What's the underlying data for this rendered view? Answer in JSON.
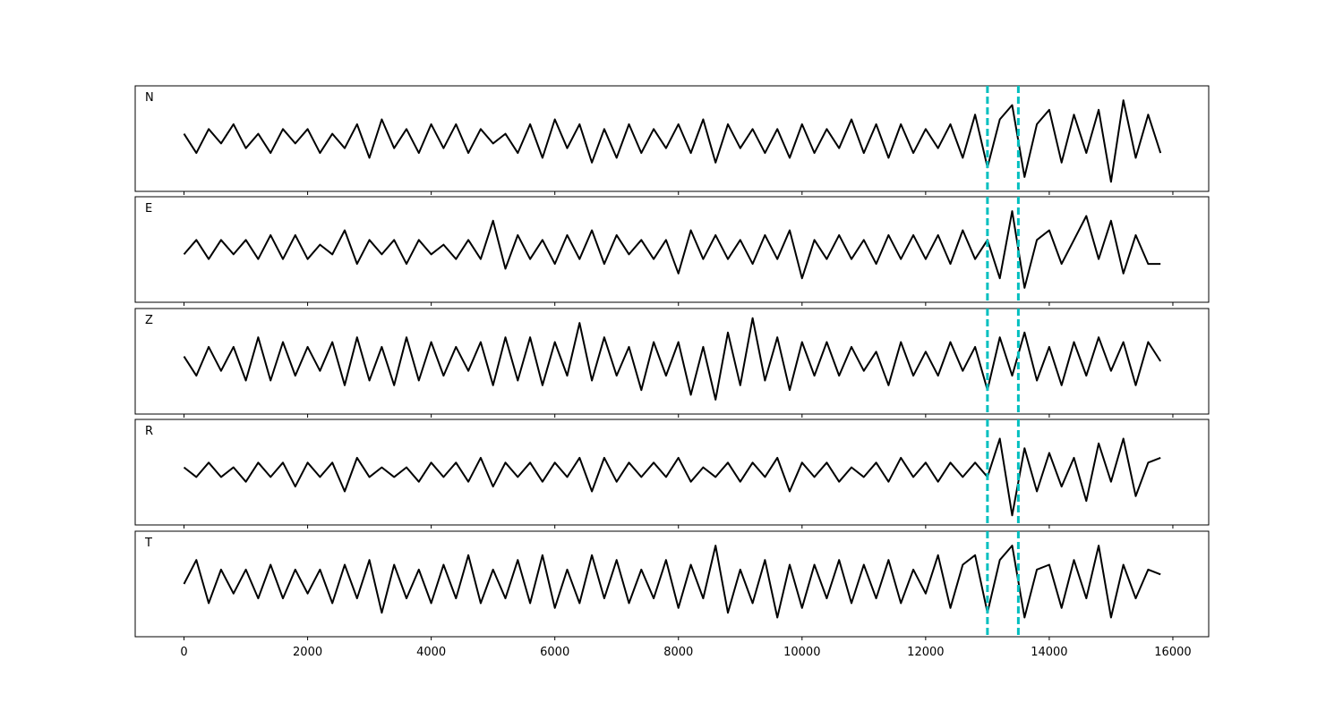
{
  "chart_data": [
    {
      "type": "line",
      "title": "N",
      "color": "#000000",
      "vlines": [
        13000,
        13500
      ],
      "vline_color": "#00bfbf",
      "xlim": [
        -790,
        16580
      ],
      "ylim": [
        -1.1,
        1.1
      ],
      "xticks": [
        0,
        2000,
        4000,
        6000,
        8000,
        10000,
        12000,
        14000,
        16000
      ],
      "x": [
        0,
        200,
        400,
        600,
        800,
        1000,
        1200,
        1400,
        1600,
        1800,
        2000,
        2200,
        2400,
        2600,
        2800,
        3000,
        3200,
        3400,
        3600,
        3800,
        4000,
        4200,
        4400,
        4600,
        4800,
        5000,
        5200,
        5400,
        5600,
        5800,
        6000,
        6200,
        6400,
        6600,
        6800,
        7000,
        7200,
        7400,
        7600,
        7800,
        8000,
        8200,
        8400,
        8600,
        8800,
        9000,
        9200,
        9400,
        9600,
        9800,
        10000,
        10200,
        10400,
        10600,
        10800,
        11000,
        11200,
        11400,
        11600,
        11800,
        12000,
        12200,
        12400,
        12600,
        12800,
        13000,
        13200,
        13400,
        13600,
        13800,
        14000,
        14200,
        14400,
        14600,
        14800,
        15000,
        15200,
        15400,
        15600,
        15800
      ],
      "values": [
        0.1,
        -0.3,
        0.2,
        -0.1,
        0.3,
        -0.2,
        0.1,
        -0.3,
        0.2,
        -0.1,
        0.2,
        -0.3,
        0.1,
        -0.2,
        0.3,
        -0.4,
        0.4,
        -0.2,
        0.2,
        -0.3,
        0.3,
        -0.2,
        0.3,
        -0.3,
        0.2,
        -0.1,
        0.1,
        -0.3,
        0.3,
        -0.4,
        0.4,
        -0.2,
        0.3,
        -0.5,
        0.2,
        -0.4,
        0.3,
        -0.3,
        0.2,
        -0.2,
        0.3,
        -0.3,
        0.4,
        -0.5,
        0.3,
        -0.2,
        0.2,
        -0.3,
        0.2,
        -0.4,
        0.3,
        -0.3,
        0.2,
        -0.2,
        0.4,
        -0.3,
        0.3,
        -0.4,
        0.3,
        -0.3,
        0.2,
        -0.2,
        0.3,
        -0.4,
        0.5,
        -0.6,
        0.4,
        0.7,
        -0.8,
        0.3,
        0.6,
        -0.5,
        0.5,
        -0.3,
        0.6,
        -0.9,
        0.8,
        -0.4,
        0.5,
        -0.3
      ]
    },
    {
      "type": "line",
      "title": "E",
      "color": "#000000",
      "vlines": [
        13000,
        13500
      ],
      "vline_color": "#00bfbf",
      "xlim": [
        -790,
        16580
      ],
      "ylim": [
        -1.1,
        1.1
      ],
      "xticks": [
        0,
        2000,
        4000,
        6000,
        8000,
        10000,
        12000,
        14000,
        16000
      ],
      "x": [
        0,
        200,
        400,
        600,
        800,
        1000,
        1200,
        1400,
        1600,
        1800,
        2000,
        2200,
        2400,
        2600,
        2800,
        3000,
        3200,
        3400,
        3600,
        3800,
        4000,
        4200,
        4400,
        4600,
        4800,
        5000,
        5200,
        5400,
        5600,
        5800,
        6000,
        6200,
        6400,
        6600,
        6800,
        7000,
        7200,
        7400,
        7600,
        7800,
        8000,
        8200,
        8400,
        8600,
        8800,
        9000,
        9200,
        9400,
        9600,
        9800,
        10000,
        10200,
        10400,
        10600,
        10800,
        11000,
        11200,
        11400,
        11600,
        11800,
        12000,
        12200,
        12400,
        12600,
        12800,
        13000,
        13200,
        13400,
        13600,
        13800,
        14000,
        14200,
        14400,
        14600,
        14800,
        15000,
        15200,
        15400,
        15600,
        15800
      ],
      "values": [
        -0.1,
        0.2,
        -0.2,
        0.2,
        -0.1,
        0.2,
        -0.2,
        0.3,
        -0.2,
        0.3,
        -0.2,
        0.1,
        -0.1,
        0.4,
        -0.3,
        0.2,
        -0.1,
        0.2,
        -0.3,
        0.2,
        -0.1,
        0.1,
        -0.2,
        0.2,
        -0.2,
        0.6,
        -0.4,
        0.3,
        -0.2,
        0.2,
        -0.3,
        0.3,
        -0.2,
        0.4,
        -0.3,
        0.3,
        -0.1,
        0.2,
        -0.2,
        0.2,
        -0.5,
        0.4,
        -0.2,
        0.3,
        -0.2,
        0.2,
        -0.3,
        0.3,
        -0.2,
        0.4,
        -0.6,
        0.2,
        -0.2,
        0.3,
        -0.2,
        0.2,
        -0.3,
        0.3,
        -0.2,
        0.3,
        -0.2,
        0.3,
        -0.3,
        0.4,
        -0.2,
        0.2,
        -0.6,
        0.8,
        -0.8,
        0.2,
        0.4,
        -0.3,
        0.2,
        0.7,
        -0.2,
        0.6,
        -0.5,
        0.3,
        -0.3,
        -0.3
      ]
    },
    {
      "type": "line",
      "title": "Z",
      "color": "#000000",
      "vlines": [
        13000,
        13500
      ],
      "vline_color": "#00bfbf",
      "xlim": [
        -790,
        16580
      ],
      "ylim": [
        -1.1,
        1.1
      ],
      "xticks": [
        0,
        2000,
        4000,
        6000,
        8000,
        10000,
        12000,
        14000,
        16000
      ],
      "x": [
        0,
        200,
        400,
        600,
        800,
        1000,
        1200,
        1400,
        1600,
        1800,
        2000,
        2200,
        2400,
        2600,
        2800,
        3000,
        3200,
        3400,
        3600,
        3800,
        4000,
        4200,
        4400,
        4600,
        4800,
        5000,
        5200,
        5400,
        5600,
        5800,
        6000,
        6200,
        6400,
        6600,
        6800,
        7000,
        7200,
        7400,
        7600,
        7800,
        8000,
        8200,
        8400,
        8600,
        8800,
        9000,
        9200,
        9400,
        9600,
        9800,
        10000,
        10200,
        10400,
        10600,
        10800,
        11000,
        11200,
        11400,
        11600,
        11800,
        12000,
        12200,
        12400,
        12600,
        12800,
        13000,
        13200,
        13400,
        13600,
        13800,
        14000,
        14200,
        14400,
        14600,
        14800,
        15000,
        15200,
        15400,
        15600,
        15800
      ],
      "values": [
        0.1,
        -0.3,
        0.3,
        -0.2,
        0.3,
        -0.4,
        0.5,
        -0.4,
        0.4,
        -0.3,
        0.3,
        -0.2,
        0.4,
        -0.5,
        0.5,
        -0.4,
        0.3,
        -0.5,
        0.5,
        -0.4,
        0.4,
        -0.3,
        0.3,
        -0.2,
        0.4,
        -0.5,
        0.5,
        -0.4,
        0.5,
        -0.5,
        0.4,
        -0.3,
        0.8,
        -0.4,
        0.5,
        -0.3,
        0.3,
        -0.6,
        0.4,
        -0.3,
        0.4,
        -0.7,
        0.3,
        -0.8,
        0.6,
        -0.5,
        0.9,
        -0.4,
        0.5,
        -0.6,
        0.4,
        -0.3,
        0.4,
        -0.3,
        0.3,
        -0.2,
        0.2,
        -0.5,
        0.4,
        -0.3,
        0.2,
        -0.3,
        0.4,
        -0.2,
        0.3,
        -0.6,
        0.5,
        -0.3,
        0.6,
        -0.4,
        0.3,
        -0.5,
        0.4,
        -0.3,
        0.5,
        -0.2,
        0.4,
        -0.5,
        0.4,
        0.0
      ]
    },
    {
      "type": "line",
      "title": "R",
      "color": "#000000",
      "vlines": [
        13000,
        13500
      ],
      "vline_color": "#00bfbf",
      "xlim": [
        -790,
        16580
      ],
      "ylim": [
        -1.1,
        1.1
      ],
      "xticks": [
        0,
        2000,
        4000,
        6000,
        8000,
        10000,
        12000,
        14000,
        16000
      ],
      "x": [
        0,
        200,
        400,
        600,
        800,
        1000,
        1200,
        1400,
        1600,
        1800,
        2000,
        2200,
        2400,
        2600,
        2800,
        3000,
        3200,
        3400,
        3600,
        3800,
        4000,
        4200,
        4400,
        4600,
        4800,
        5000,
        5200,
        5400,
        5600,
        5800,
        6000,
        6200,
        6400,
        6600,
        6800,
        7000,
        7200,
        7400,
        7600,
        7800,
        8000,
        8200,
        8400,
        8600,
        8800,
        9000,
        9200,
        9400,
        9600,
        9800,
        10000,
        10200,
        10400,
        10600,
        10800,
        11000,
        11200,
        11400,
        11600,
        11800,
        12000,
        12200,
        12400,
        12600,
        12800,
        13000,
        13200,
        13400,
        13600,
        13800,
        14000,
        14200,
        14400,
        14600,
        14800,
        15000,
        15200,
        15400,
        15600,
        15800
      ],
      "values": [
        0.1,
        -0.1,
        0.2,
        -0.1,
        0.1,
        -0.2,
        0.2,
        -0.1,
        0.2,
        -0.3,
        0.2,
        -0.1,
        0.2,
        -0.4,
        0.3,
        -0.1,
        0.1,
        -0.1,
        0.1,
        -0.2,
        0.2,
        -0.1,
        0.2,
        -0.2,
        0.3,
        -0.3,
        0.2,
        -0.1,
        0.2,
        -0.2,
        0.2,
        -0.1,
        0.3,
        -0.4,
        0.3,
        -0.2,
        0.2,
        -0.1,
        0.2,
        -0.1,
        0.3,
        -0.2,
        0.1,
        -0.1,
        0.2,
        -0.2,
        0.2,
        -0.1,
        0.3,
        -0.4,
        0.2,
        -0.1,
        0.2,
        -0.2,
        0.1,
        -0.1,
        0.2,
        -0.2,
        0.3,
        -0.1,
        0.2,
        -0.2,
        0.2,
        -0.1,
        0.2,
        -0.1,
        0.7,
        -0.9,
        0.5,
        -0.4,
        0.4,
        -0.3,
        0.3,
        -0.6,
        0.6,
        -0.2,
        0.7,
        -0.5,
        0.2,
        0.3
      ]
    },
    {
      "type": "line",
      "title": "T",
      "color": "#000000",
      "vlines": [
        13000,
        13500
      ],
      "vline_color": "#00bfbf",
      "xlim": [
        -790,
        16580
      ],
      "ylim": [
        -1.1,
        1.1
      ],
      "xticks": [
        0,
        2000,
        4000,
        6000,
        8000,
        10000,
        12000,
        14000,
        16000
      ],
      "x": [
        0,
        200,
        400,
        600,
        800,
        1000,
        1200,
        1400,
        1600,
        1800,
        2000,
        2200,
        2400,
        2600,
        2800,
        3000,
        3200,
        3400,
        3600,
        3800,
        4000,
        4200,
        4400,
        4600,
        4800,
        5000,
        5200,
        5400,
        5600,
        5800,
        6000,
        6200,
        6400,
        6600,
        6800,
        7000,
        7200,
        7400,
        7600,
        7800,
        8000,
        8200,
        8400,
        8600,
        8800,
        9000,
        9200,
        9400,
        9600,
        9800,
        10000,
        10200,
        10400,
        10600,
        10800,
        11000,
        11200,
        11400,
        11600,
        11800,
        12000,
        12200,
        12400,
        12600,
        12800,
        13000,
        13200,
        13400,
        13600,
        13800,
        14000,
        14200,
        14400,
        14600,
        14800,
        15000,
        15200,
        15400,
        15600,
        15800
      ],
      "values": [
        0.0,
        0.5,
        -0.4,
        0.3,
        -0.2,
        0.3,
        -0.3,
        0.4,
        -0.3,
        0.3,
        -0.2,
        0.3,
        -0.4,
        0.4,
        -0.3,
        0.5,
        -0.6,
        0.4,
        -0.3,
        0.3,
        -0.4,
        0.4,
        -0.3,
        0.6,
        -0.4,
        0.3,
        -0.3,
        0.5,
        -0.4,
        0.6,
        -0.5,
        0.3,
        -0.4,
        0.6,
        -0.3,
        0.5,
        -0.4,
        0.3,
        -0.3,
        0.5,
        -0.5,
        0.4,
        -0.3,
        0.8,
        -0.6,
        0.3,
        -0.4,
        0.5,
        -0.7,
        0.4,
        -0.5,
        0.4,
        -0.3,
        0.5,
        -0.4,
        0.4,
        -0.3,
        0.5,
        -0.4,
        0.3,
        -0.2,
        0.6,
        -0.5,
        0.4,
        0.6,
        -0.6,
        0.5,
        0.8,
        -0.7,
        0.3,
        0.4,
        -0.5,
        0.5,
        -0.3,
        0.8,
        -0.7,
        0.4,
        -0.3,
        0.3,
        0.2
      ]
    }
  ]
}
